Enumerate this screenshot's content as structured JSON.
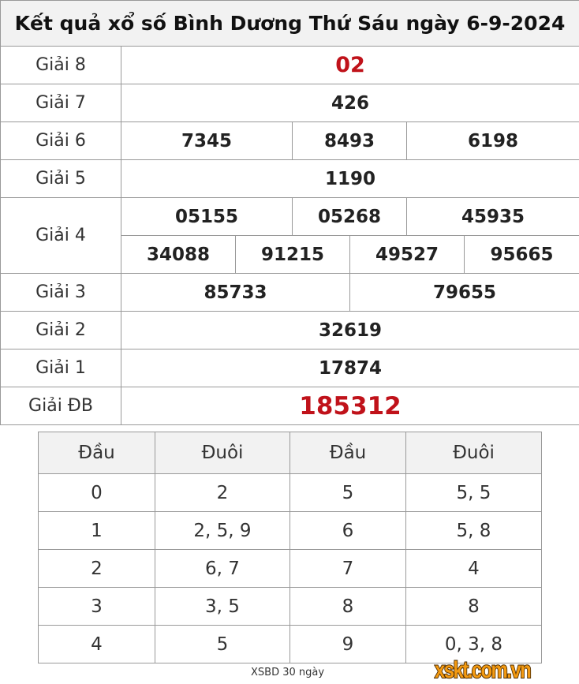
{
  "title": "Kết quả xổ số Bình Dương Thứ Sáu ngày 6-9-2024",
  "prizes": {
    "g8": {
      "label": "Giải 8",
      "values": [
        "02"
      ]
    },
    "g7": {
      "label": "Giải 7",
      "values": [
        "426"
      ]
    },
    "g6": {
      "label": "Giải 6",
      "values": [
        "7345",
        "8493",
        "6198"
      ]
    },
    "g5": {
      "label": "Giải 5",
      "values": [
        "1190"
      ]
    },
    "g4": {
      "label": "Giải 4",
      "values": [
        "05155",
        "05268",
        "45935",
        "34088",
        "91215",
        "49527",
        "95665"
      ]
    },
    "g3": {
      "label": "Giải 3",
      "values": [
        "85733",
        "79655"
      ]
    },
    "g2": {
      "label": "Giải 2",
      "values": [
        "32619"
      ]
    },
    "g1": {
      "label": "Giải 1",
      "values": [
        "17874"
      ]
    },
    "db": {
      "label": "Giải ĐB",
      "values": [
        "185312"
      ]
    }
  },
  "loto": {
    "headers": [
      "Đầu",
      "Đuôi",
      "Đầu",
      "Đuôi"
    ],
    "rows": [
      [
        "0",
        "2",
        "5",
        "5, 5"
      ],
      [
        "1",
        "2, 5, 9",
        "6",
        "5, 8"
      ],
      [
        "2",
        "6, 7",
        "7",
        "4"
      ],
      [
        "3",
        "3, 5",
        "8",
        "8"
      ],
      [
        "4",
        "5",
        "9",
        "0, 3, 8"
      ]
    ]
  },
  "footer_link": "XSBD 30 ngày",
  "logo": "xskt.com.vn",
  "colors": {
    "accent_red": "#c0121a",
    "header_bg": "#f2f2f2",
    "logo_orange": "#f39a12"
  }
}
